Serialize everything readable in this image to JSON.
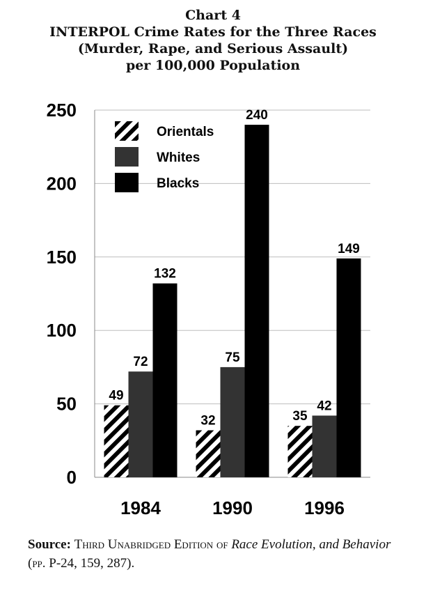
{
  "chart_title": {
    "line1": "Chart 4",
    "line2": "INTERPOL Crime Rates for the Three Races",
    "line3": "(Murder, Rape, and Serious Assault)",
    "line4": "per 100,000 Population"
  },
  "chart_data": {
    "type": "bar",
    "categories": [
      "1984",
      "1990",
      "1996"
    ],
    "series": [
      {
        "name": "Orientals",
        "values": [
          49,
          32,
          35
        ],
        "color": "#ffffff",
        "pattern": "diagonal-hatch"
      },
      {
        "name": "Whites",
        "values": [
          72,
          75,
          42
        ],
        "color": "#333333"
      },
      {
        "name": "Blacks",
        "values": [
          132,
          240,
          149
        ],
        "color": "#000000"
      }
    ],
    "ylim": [
      0,
      250
    ],
    "yticks": [
      "0",
      "50",
      "100",
      "150",
      "200",
      "250"
    ],
    "grid": true,
    "legend_position": "top-left"
  },
  "source": {
    "label": "Source:",
    "text_part1": "Third Unabridged Edition of",
    "title_part1": "Race Evolution,",
    "title_part2": "and Behavior",
    "text_part2": "(pp. P-24, 159, 287)."
  }
}
